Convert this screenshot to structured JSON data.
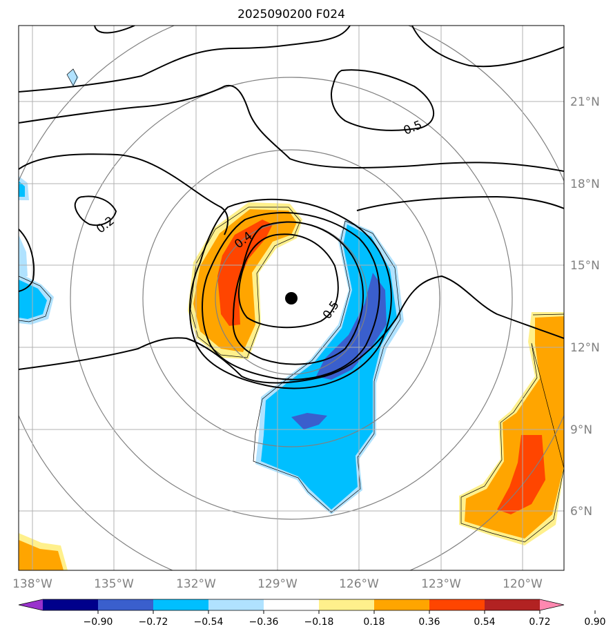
{
  "title": "2025090200 F024",
  "longitude_labels": [
    "138°W",
    "135°W",
    "132°W",
    "129°W",
    "126°W",
    "123°W",
    "120°W"
  ],
  "latitude_labels": [
    "21°N",
    "18°N",
    "15°N",
    "12°N",
    "9°N",
    "6°N"
  ],
  "colorbar": {
    "tick_labels": [
      "−0.90",
      "−0.72",
      "−0.54",
      "−0.36",
      "−0.18",
      "0.18",
      "0.36",
      "0.54",
      "0.72",
      "0.90"
    ],
    "colors": [
      "#9932cc",
      "#00008b",
      "#3a5fcd",
      "#00bfff",
      "#b0e2ff",
      "#ffffff",
      "#fff08c",
      "#ffa500",
      "#ff4500",
      "#b22222",
      "#ff88b0"
    ]
  },
  "contour_labels": [
    "0.5",
    "0.2",
    "0.4",
    "0.5"
  ],
  "storm_center": {
    "lon": -128.5,
    "lat": 13.8
  },
  "chart_data": {
    "type": "map",
    "lon_range": [
      -138.5,
      -118.5
    ],
    "lat_range": [
      4,
      24
    ],
    "grid": true
  }
}
